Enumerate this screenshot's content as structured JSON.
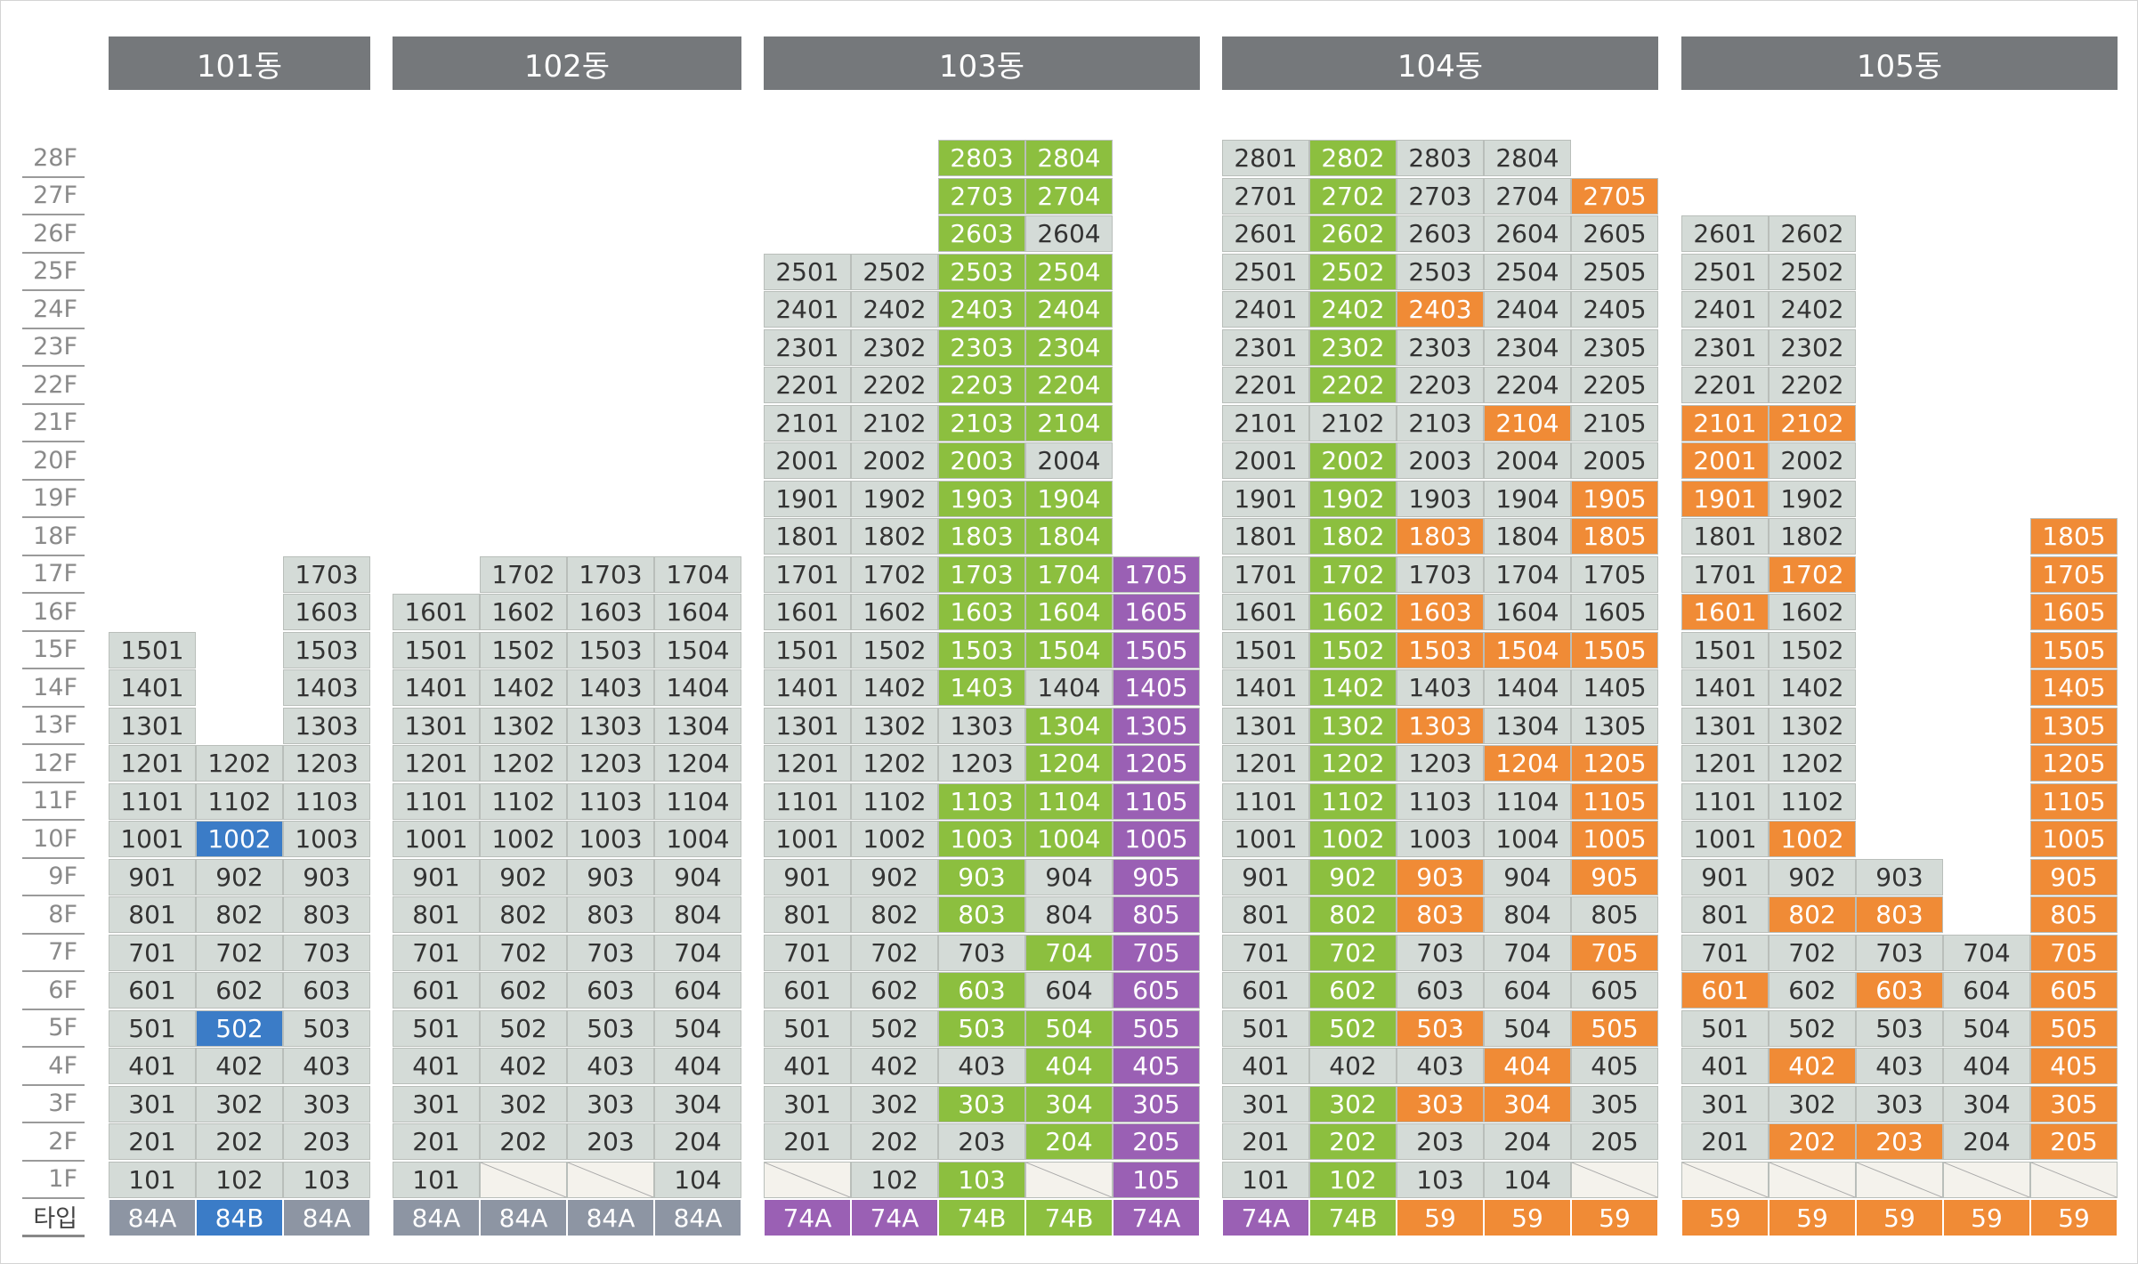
{
  "chart_data": {
    "type": "table",
    "floor_labels": [
      "28F",
      "27F",
      "26F",
      "25F",
      "24F",
      "23F",
      "22F",
      "21F",
      "20F",
      "19F",
      "18F",
      "17F",
      "16F",
      "15F",
      "14F",
      "13F",
      "12F",
      "11F",
      "10F",
      "9F",
      "8F",
      "7F",
      "6F",
      "5F",
      "4F",
      "3F",
      "2F",
      "1F"
    ],
    "type_row_label": "타입",
    "colors": {
      "default": "#d4dbd7",
      "green": "#8cbf3f",
      "orange": "#f08b36",
      "purple": "#9a60b4",
      "blue": "#3b7cc7",
      "typegray": "#8d95a3",
      "header": "#75787b"
    },
    "buildings": [
      {
        "name": "101동",
        "lines": [
          {
            "type": "84A",
            "type_color": "typegray",
            "max": 15,
            "green": [],
            "orange": [],
            "purple": [],
            "blue": []
          },
          {
            "type": "84B",
            "type_color": "blue",
            "max": 12,
            "green": [],
            "orange": [],
            "purple": [],
            "blue": [
              5,
              10
            ]
          },
          {
            "type": "84A",
            "type_color": "typegray",
            "max": 17,
            "green": [],
            "orange": [],
            "purple": [],
            "blue": []
          }
        ]
      },
      {
        "name": "102동",
        "lines": [
          {
            "type": "84A",
            "type_color": "typegray",
            "max": 16,
            "min": 1,
            "green": [],
            "orange": [],
            "purple": [],
            "blue": []
          },
          {
            "type": "84A",
            "type_color": "typegray",
            "max": 17,
            "min": 2,
            "green": [],
            "orange": [],
            "purple": [],
            "blue": []
          },
          {
            "type": "84A",
            "type_color": "typegray",
            "max": 17,
            "min": 2,
            "green": [],
            "orange": [],
            "purple": [],
            "blue": []
          },
          {
            "type": "84A",
            "type_color": "typegray",
            "max": 17,
            "min": 1,
            "green": [],
            "orange": [],
            "purple": [],
            "blue": []
          }
        ]
      },
      {
        "name": "103동",
        "lines": [
          {
            "type": "74A",
            "type_color": "purple",
            "max": 25,
            "min": 2,
            "green": [],
            "orange": [],
            "purple": [],
            "blue": []
          },
          {
            "type": "74A",
            "type_color": "purple",
            "max": 25,
            "min": 1,
            "green": [],
            "orange": [],
            "purple": [],
            "blue": []
          },
          {
            "type": "74B",
            "type_color": "green",
            "max": 28,
            "min": 1,
            "green": [
              1,
              3,
              5,
              6,
              8,
              9,
              10,
              11,
              14,
              15,
              16,
              17,
              18,
              19,
              20,
              21,
              22,
              23,
              24,
              25,
              26,
              27,
              28
            ],
            "orange": [],
            "purple": [],
            "blue": []
          },
          {
            "type": "74B",
            "type_color": "green",
            "max": 28,
            "min": 2,
            "green": [
              2,
              3,
              4,
              5,
              7,
              10,
              11,
              12,
              13,
              15,
              16,
              17,
              18,
              19,
              21,
              22,
              23,
              24,
              25,
              27,
              28
            ],
            "orange": [],
            "purple": [],
            "blue": []
          },
          {
            "type": "74A",
            "type_color": "purple",
            "max": 17,
            "min": 1,
            "green": [],
            "orange": [],
            "purple": [
              1,
              2,
              3,
              4,
              5,
              6,
              7,
              8,
              9,
              10,
              11,
              12,
              13,
              14,
              15,
              16,
              17
            ],
            "blue": []
          }
        ]
      },
      {
        "name": "104동",
        "lines": [
          {
            "type": "74A",
            "type_color": "purple",
            "max": 28,
            "min": 1,
            "green": [],
            "orange": [],
            "purple": [],
            "blue": []
          },
          {
            "type": "74B",
            "type_color": "green",
            "max": 28,
            "min": 1,
            "green": [
              1,
              2,
              3,
              5,
              6,
              7,
              8,
              9,
              10,
              11,
              12,
              13,
              14,
              15,
              16,
              17,
              18,
              19,
              20,
              22,
              23,
              24,
              25,
              26,
              27,
              28
            ],
            "orange": [],
            "purple": [],
            "blue": []
          },
          {
            "type": "59",
            "type_color": "orange",
            "max": 28,
            "min": 1,
            "green": [],
            "orange": [
              3,
              5,
              8,
              9,
              13,
              15,
              16,
              18,
              24
            ],
            "purple": [],
            "blue": []
          },
          {
            "type": "59",
            "type_color": "orange",
            "max": 28,
            "min": 1,
            "green": [],
            "orange": [
              3,
              4,
              12,
              15,
              21
            ],
            "purple": [],
            "blue": []
          },
          {
            "type": "59",
            "type_color": "orange",
            "max": 27,
            "min": 2,
            "green": [],
            "orange": [
              5,
              7,
              9,
              10,
              11,
              12,
              15,
              18,
              19,
              27
            ],
            "purple": [],
            "blue": []
          }
        ]
      },
      {
        "name": "105동",
        "lines": [
          {
            "type": "59",
            "type_color": "orange",
            "max": 26,
            "min": 2,
            "green": [],
            "orange": [
              6,
              16,
              19,
              20,
              21
            ],
            "purple": [],
            "blue": []
          },
          {
            "type": "59",
            "type_color": "orange",
            "max": 26,
            "min": 2,
            "green": [],
            "orange": [
              2,
              4,
              8,
              10,
              17,
              21
            ],
            "purple": [],
            "blue": []
          },
          {
            "type": "59",
            "type_color": "orange",
            "max": 9,
            "min": 2,
            "green": [],
            "orange": [
              2,
              6,
              8
            ],
            "purple": [],
            "blue": []
          },
          {
            "type": "59",
            "type_color": "orange",
            "max": 7,
            "min": 2,
            "green": [],
            "orange": [],
            "purple": [],
            "blue": []
          },
          {
            "type": "59",
            "type_color": "orange",
            "max": 18,
            "min": 2,
            "green": [],
            "orange": [
              2,
              3,
              4,
              5,
              6,
              7,
              8,
              9,
              10,
              11,
              12,
              13,
              14,
              15,
              16,
              17,
              18
            ],
            "purple": [],
            "blue": []
          }
        ]
      }
    ]
  }
}
